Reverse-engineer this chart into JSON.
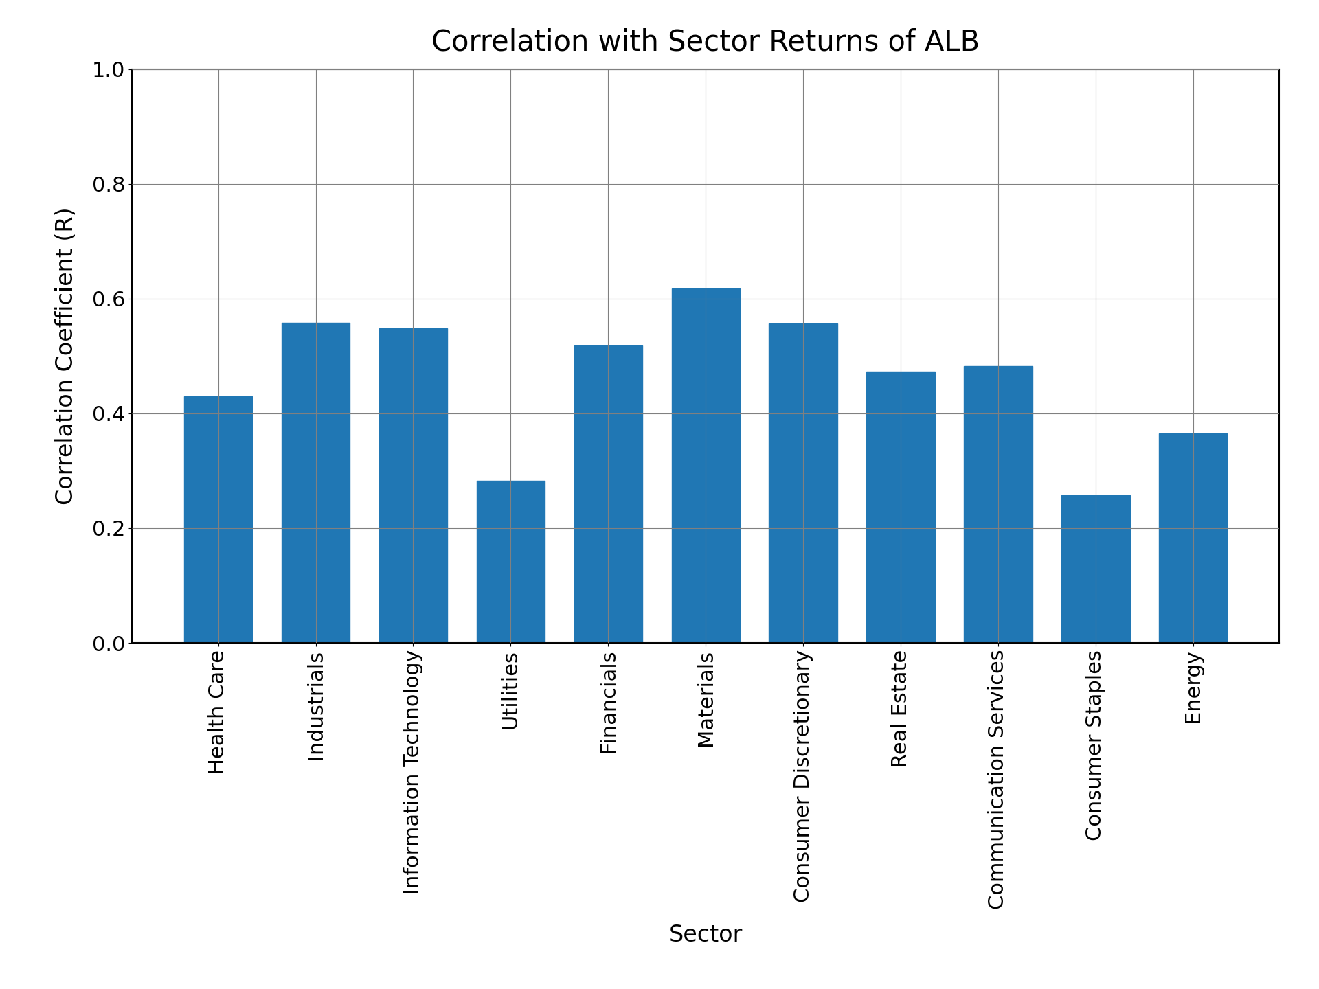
{
  "title": "Correlation with Sector Returns of ALB",
  "xlabel": "Sector",
  "ylabel": "Correlation Coefficient (R)",
  "categories": [
    "Health Care",
    "Industrials",
    "Information Technology",
    "Utilities",
    "Financials",
    "Materials",
    "Consumer Discretionary",
    "Real Estate",
    "Communication Services",
    "Consumer Staples",
    "Energy"
  ],
  "values": [
    0.43,
    0.558,
    0.548,
    0.283,
    0.518,
    0.618,
    0.557,
    0.473,
    0.483,
    0.258,
    0.365
  ],
  "bar_color": "#2077b4",
  "ylim": [
    0.0,
    1.0
  ],
  "yticks": [
    0.0,
    0.2,
    0.4,
    0.6,
    0.8,
    1.0
  ],
  "title_fontsize": 30,
  "label_fontsize": 24,
  "tick_fontsize": 22,
  "figsize": [
    19.2,
    14.4
  ],
  "dpi": 100,
  "grid": true,
  "background_color": "#ffffff"
}
